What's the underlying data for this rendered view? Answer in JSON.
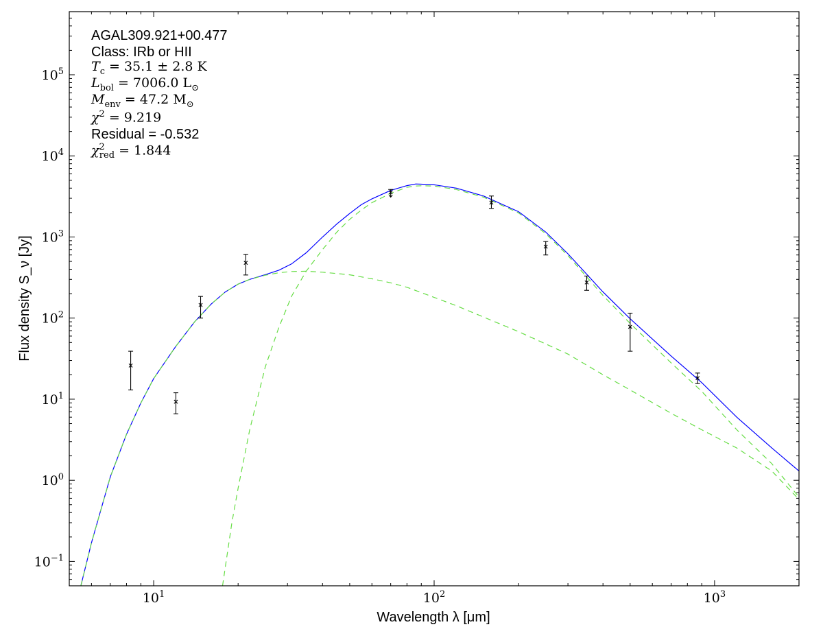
{
  "chart_data": {
    "type": "scatter",
    "title": "",
    "xlabel": "Wavelength λ [μm]",
    "ylabel": "Flux density S_ν [Jy]",
    "xscale": "log",
    "yscale": "log",
    "xlim": [
      5,
      2000
    ],
    "ylim": [
      0.05,
      600000
    ],
    "xticks": [
      {
        "value": 10,
        "base": "10",
        "exp": "1"
      },
      {
        "value": 100,
        "base": "10",
        "exp": "2"
      },
      {
        "value": 1000,
        "base": "10",
        "exp": "3"
      }
    ],
    "yticks": [
      {
        "value": 0.1,
        "base": "10",
        "exp": "−1"
      },
      {
        "value": 1,
        "base": "10",
        "exp": "0"
      },
      {
        "value": 10,
        "base": "10",
        "exp": "1"
      },
      {
        "value": 100,
        "base": "10",
        "exp": "2"
      },
      {
        "value": 1000,
        "base": "10",
        "exp": "3"
      },
      {
        "value": 10000,
        "base": "10",
        "exp": "4"
      },
      {
        "value": 100000,
        "base": "10",
        "exp": "5"
      }
    ],
    "grid": false,
    "annotations": {
      "source": "AGAL309.921+00.477",
      "class_line": "Class: IRb or HII",
      "tc_label": "T",
      "tc_sub": "c",
      "tc_value": " = 35.1 ± 2.8 ",
      "tc_unit": "K",
      "lbol_label": "L",
      "lbol_sub": "bol",
      "lbol_value": " = 7006.0 ",
      "lbol_unit": "L",
      "lbol_unit_sub": "⊙",
      "menv_label": "M",
      "menv_sub": "env",
      "menv_value": " = 47.2 ",
      "menv_unit": "M",
      "menv_unit_sub": "⊙",
      "chi2_label": "χ",
      "chi2_sup": "2",
      "chi2_value": " = 9.219",
      "residual_line": "Residual = -0.532",
      "chi2red_label": "χ",
      "chi2red_sup": "2",
      "chi2red_sub": "red",
      "chi2red_value": " = 1.844"
    },
    "points": [
      {
        "x": 8.28,
        "y": 26.0,
        "err_low": 13.0,
        "err_high": 39.0,
        "upper_limit": false
      },
      {
        "x": 12.0,
        "y": 9.3,
        "err_low": 6.6,
        "err_high": 12.0,
        "upper_limit": false
      },
      {
        "x": 14.7,
        "y": 145,
        "err_low": 100,
        "err_high": 185,
        "upper_limit": false
      },
      {
        "x": 21.3,
        "y": 480,
        "err_low": 340,
        "err_high": 610,
        "upper_limit": false
      },
      {
        "x": 70,
        "y": 3550,
        "err_low": 3100,
        "err_high": 3850,
        "upper_limit": true
      },
      {
        "x": 160,
        "y": 2650,
        "err_low": 2250,
        "err_high": 3200,
        "upper_limit": false
      },
      {
        "x": 250,
        "y": 760,
        "err_low": 600,
        "err_high": 880,
        "upper_limit": false
      },
      {
        "x": 350,
        "y": 275,
        "err_low": 220,
        "err_high": 330,
        "upper_limit": false
      },
      {
        "x": 500,
        "y": 78,
        "err_low": 39,
        "err_high": 115,
        "upper_limit": false
      },
      {
        "x": 870,
        "y": 18.2,
        "err_low": 15.6,
        "err_high": 21.0,
        "upper_limit": false
      }
    ],
    "series": [
      {
        "color": "#0000ff",
        "style": "solid",
        "values": [
          [
            5.5,
            0.05
          ],
          [
            6,
            0.17
          ],
          [
            7,
            1.1
          ],
          [
            8,
            3.7
          ],
          [
            9,
            9.0
          ],
          [
            10,
            18
          ],
          [
            12,
            45
          ],
          [
            14,
            90
          ],
          [
            16,
            148
          ],
          [
            18,
            210
          ],
          [
            20,
            262
          ],
          [
            22,
            300
          ],
          [
            25,
            343
          ],
          [
            28,
            390
          ],
          [
            31,
            465
          ],
          [
            35,
            640
          ],
          [
            40,
            1000
          ],
          [
            45,
            1450
          ],
          [
            50,
            1950
          ],
          [
            55,
            2500
          ],
          [
            60,
            2950
          ],
          [
            70,
            3750
          ],
          [
            80,
            4300
          ],
          [
            86,
            4500
          ],
          [
            90,
            4480
          ],
          [
            100,
            4400
          ],
          [
            120,
            4000
          ],
          [
            150,
            3200
          ],
          [
            200,
            2050
          ],
          [
            250,
            1150
          ],
          [
            300,
            620
          ],
          [
            400,
            210
          ],
          [
            500,
            98
          ],
          [
            700,
            34
          ],
          [
            900,
            16
          ],
          [
            1200,
            6.0
          ],
          [
            1600,
            2.5
          ],
          [
            2000,
            1.3
          ]
        ]
      },
      {
        "color": "#66dd44",
        "style": "dashed",
        "values": [
          [
            5.5,
            0.05
          ],
          [
            6,
            0.17
          ],
          [
            7,
            1.1
          ],
          [
            8,
            3.7
          ],
          [
            9,
            9.0
          ],
          [
            10,
            18
          ],
          [
            12,
            45
          ],
          [
            14,
            90
          ],
          [
            16,
            148
          ],
          [
            18,
            210
          ],
          [
            20,
            262
          ],
          [
            22,
            300
          ],
          [
            25,
            338
          ],
          [
            28,
            362
          ],
          [
            31,
            375
          ],
          [
            35,
            378
          ],
          [
            40,
            368
          ],
          [
            50,
            342
          ],
          [
            60,
            305
          ],
          [
            70,
            272
          ],
          [
            80,
            240
          ],
          [
            100,
            180
          ],
          [
            120,
            142
          ],
          [
            150,
            103
          ],
          [
            200,
            68
          ],
          [
            250,
            48
          ],
          [
            300,
            36
          ],
          [
            400,
            20
          ],
          [
            500,
            13
          ],
          [
            700,
            6.7
          ],
          [
            900,
            4.2
          ],
          [
            1200,
            2.5
          ],
          [
            1600,
            1.3
          ],
          [
            2000,
            0.58
          ]
        ]
      },
      {
        "color": "#66dd44",
        "style": "dashed",
        "values": [
          [
            17.6,
            0.05
          ],
          [
            18,
            0.085
          ],
          [
            19,
            0.3
          ],
          [
            20,
            0.8
          ],
          [
            22,
            4.2
          ],
          [
            25,
            25
          ],
          [
            28,
            78
          ],
          [
            31,
            185
          ],
          [
            35,
            380
          ],
          [
            40,
            700
          ],
          [
            45,
            1150
          ],
          [
            50,
            1650
          ],
          [
            55,
            2150
          ],
          [
            60,
            2650
          ],
          [
            70,
            3450
          ],
          [
            80,
            4100
          ],
          [
            86,
            4250
          ],
          [
            90,
            4280
          ],
          [
            100,
            4250
          ],
          [
            120,
            3850
          ],
          [
            150,
            3100
          ],
          [
            200,
            1980
          ],
          [
            250,
            1100
          ],
          [
            300,
            590
          ],
          [
            400,
            190
          ],
          [
            500,
            86
          ],
          [
            700,
            28
          ],
          [
            900,
            12.5
          ],
          [
            1200,
            4.2
          ],
          [
            1600,
            1.6
          ],
          [
            2000,
            0.62
          ]
        ]
      }
    ],
    "colors": {
      "axis": "#000000",
      "points": "#000000"
    }
  }
}
